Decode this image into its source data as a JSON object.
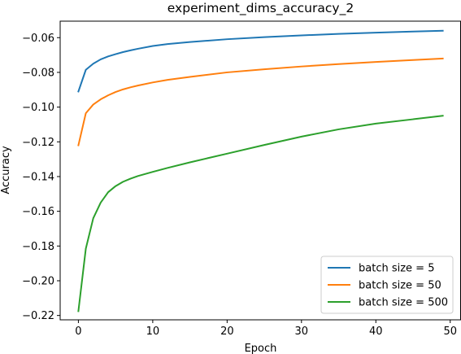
{
  "chart_data": {
    "type": "line",
    "title": "experiment_dims_accuracy_2",
    "xlabel": "Epoch",
    "ylabel": "Accuracy",
    "xlim": [
      -2.45,
      51.45
    ],
    "ylim": [
      -0.2225,
      -0.0505
    ],
    "x_ticks": [
      0,
      10,
      20,
      30,
      40,
      50
    ],
    "y_ticks": [
      -0.22,
      -0.2,
      -0.18,
      -0.16,
      -0.14,
      -0.12,
      -0.1,
      -0.08,
      -0.06
    ],
    "grid": false,
    "legend_position": "lower-right",
    "series": [
      {
        "name": "batch size = 5",
        "color": "#1f77b4",
        "x": [
          0,
          1,
          2,
          3,
          4,
          5,
          6,
          7,
          8,
          10,
          12,
          15,
          20,
          25,
          30,
          35,
          40,
          45,
          49
        ],
        "y": [
          -0.091,
          -0.0785,
          -0.075,
          -0.0725,
          -0.0708,
          -0.0695,
          -0.0683,
          -0.0673,
          -0.0664,
          -0.0648,
          -0.0637,
          -0.0625,
          -0.0609,
          -0.0597,
          -0.0587,
          -0.0578,
          -0.0571,
          -0.0565,
          -0.056
        ]
      },
      {
        "name": "batch size = 50",
        "color": "#ff7f0e",
        "x": [
          0,
          1,
          2,
          3,
          4,
          5,
          6,
          7,
          8,
          10,
          12,
          15,
          20,
          25,
          30,
          35,
          40,
          45,
          49
        ],
        "y": [
          -0.122,
          -0.1035,
          -0.0985,
          -0.0955,
          -0.0932,
          -0.0913,
          -0.0898,
          -0.0886,
          -0.0876,
          -0.0858,
          -0.0843,
          -0.0826,
          -0.08,
          -0.0782,
          -0.0766,
          -0.0752,
          -0.074,
          -0.0729,
          -0.072
        ]
      },
      {
        "name": "batch size = 500",
        "color": "#2ca02c",
        "x": [
          0,
          1,
          2,
          3,
          4,
          5,
          6,
          7,
          8,
          10,
          12,
          15,
          20,
          25,
          30,
          35,
          40,
          45,
          49
        ],
        "y": [
          -0.2175,
          -0.1815,
          -0.164,
          -0.155,
          -0.149,
          -0.1455,
          -0.143,
          -0.1412,
          -0.1397,
          -0.1373,
          -0.135,
          -0.1318,
          -0.1268,
          -0.1218,
          -0.117,
          -0.1128,
          -0.1095,
          -0.107,
          -0.105
        ]
      }
    ]
  }
}
